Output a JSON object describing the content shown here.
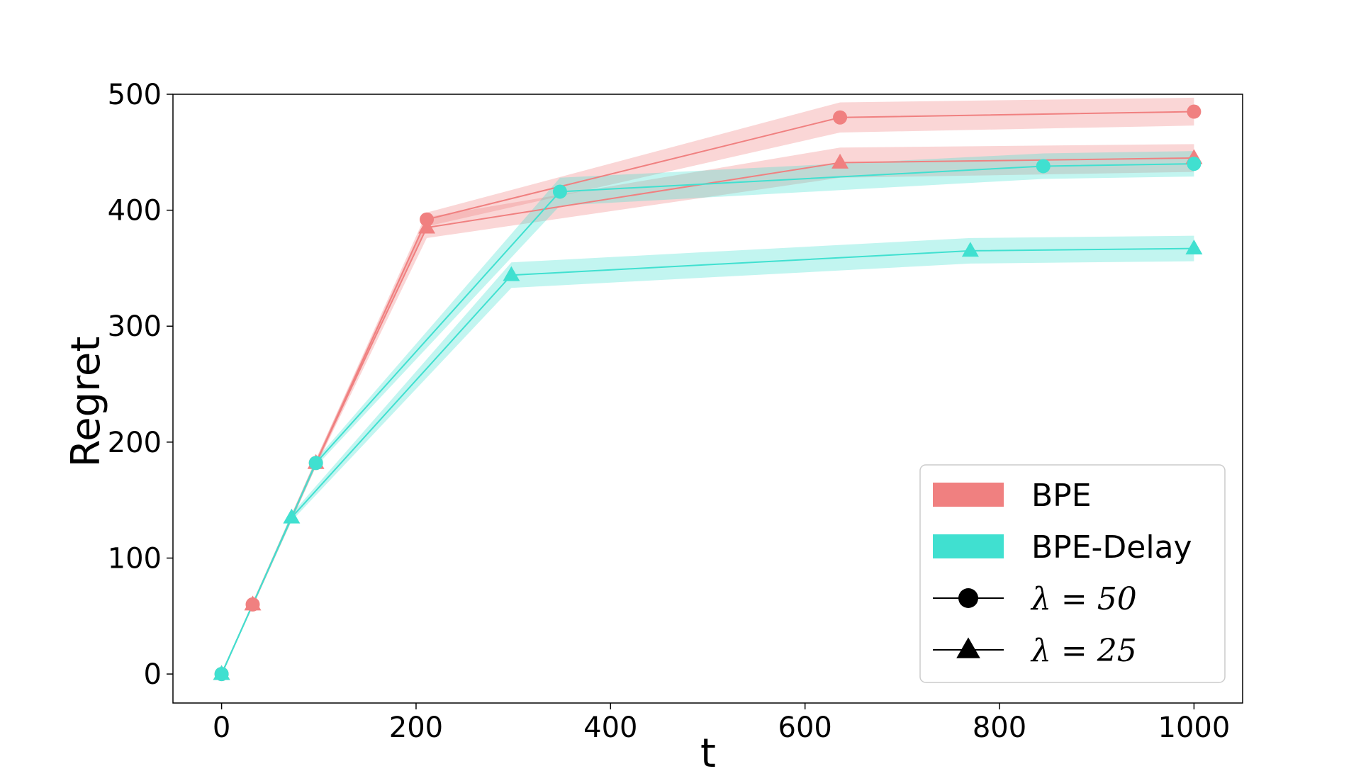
{
  "chart_data": {
    "type": "line",
    "title": "",
    "xlabel": "t",
    "ylabel": "Regret",
    "xlim": [
      -50,
      1050
    ],
    "ylim": [
      -25,
      500
    ],
    "xticks": [
      0,
      200,
      400,
      600,
      800,
      1000
    ],
    "yticks": [
      0,
      100,
      200,
      300,
      400,
      500
    ],
    "grid": false,
    "legend_position": "lower-right",
    "colors": {
      "BPE": "#F08080",
      "BPE-Delay": "#40E0D0",
      "marker_key": "#000000"
    },
    "legend": [
      {
        "label": "BPE",
        "kind": "patch",
        "color": "#F08080"
      },
      {
        "label": "BPE-Delay",
        "kind": "patch",
        "color": "#40E0D0"
      },
      {
        "label": "λ = 50",
        "kind": "marker",
        "marker": "circle"
      },
      {
        "label": "λ = 25",
        "kind": "marker",
        "marker": "triangle"
      }
    ],
    "series": [
      {
        "algorithm": "BPE",
        "lambda": 50,
        "marker": "circle",
        "color": "#F08080",
        "points": [
          {
            "x": 0,
            "y": 0,
            "lo": 0,
            "hi": 0
          },
          {
            "x": 32,
            "y": 60,
            "lo": 58,
            "hi": 62
          },
          {
            "x": 97,
            "y": 182,
            "lo": 179,
            "hi": 185
          },
          {
            "x": 211,
            "y": 392,
            "lo": 386,
            "hi": 398
          },
          {
            "x": 636,
            "y": 480,
            "lo": 467,
            "hi": 493
          },
          {
            "x": 1000,
            "y": 485,
            "lo": 473,
            "hi": 497
          }
        ]
      },
      {
        "algorithm": "BPE",
        "lambda": 25,
        "marker": "triangle",
        "color": "#F08080",
        "points": [
          {
            "x": 0,
            "y": 0,
            "lo": 0,
            "hi": 0
          },
          {
            "x": 32,
            "y": 60,
            "lo": 58,
            "hi": 62
          },
          {
            "x": 97,
            "y": 182,
            "lo": 179,
            "hi": 185
          },
          {
            "x": 211,
            "y": 385,
            "lo": 376,
            "hi": 394
          },
          {
            "x": 636,
            "y": 441,
            "lo": 428,
            "hi": 454
          },
          {
            "x": 1000,
            "y": 445,
            "lo": 433,
            "hi": 457
          }
        ]
      },
      {
        "algorithm": "BPE-Delay",
        "lambda": 50,
        "marker": "circle",
        "color": "#40E0D0",
        "points": [
          {
            "x": 0,
            "y": 0,
            "lo": 0,
            "hi": 0
          },
          {
            "x": 97,
            "y": 182,
            "lo": 179,
            "hi": 185
          },
          {
            "x": 348,
            "y": 416,
            "lo": 404,
            "hi": 428
          },
          {
            "x": 845,
            "y": 438,
            "lo": 427,
            "hi": 449
          },
          {
            "x": 1000,
            "y": 440,
            "lo": 429,
            "hi": 451
          }
        ]
      },
      {
        "algorithm": "BPE-Delay",
        "lambda": 25,
        "marker": "triangle",
        "color": "#40E0D0",
        "points": [
          {
            "x": 0,
            "y": 0,
            "lo": 0,
            "hi": 0
          },
          {
            "x": 72,
            "y": 135,
            "lo": 132,
            "hi": 138
          },
          {
            "x": 298,
            "y": 344,
            "lo": 333,
            "hi": 355
          },
          {
            "x": 770,
            "y": 365,
            "lo": 354,
            "hi": 376
          },
          {
            "x": 1000,
            "y": 367,
            "lo": 356,
            "hi": 378
          }
        ]
      }
    ]
  }
}
